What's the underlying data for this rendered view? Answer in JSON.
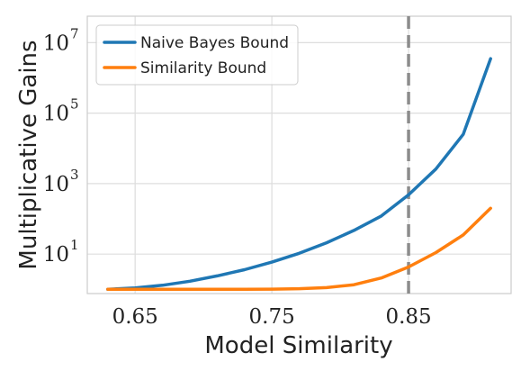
{
  "chart_data": {
    "type": "line",
    "xlabel": "Model Similarity",
    "ylabel": "Multiplicative Gains",
    "yscale": "log",
    "xlim": [
      0.615,
      0.925
    ],
    "ylim_log10": [
      -0.12,
      7.75
    ],
    "x_ticks": [
      {
        "value": 0.65,
        "label": "0.65"
      },
      {
        "value": 0.75,
        "label": "0.75"
      },
      {
        "value": 0.85,
        "label": "0.85"
      }
    ],
    "y_ticks": [
      {
        "log10": 1,
        "base": "10",
        "exp": "1"
      },
      {
        "log10": 3,
        "base": "10",
        "exp": "3"
      },
      {
        "log10": 5,
        "base": "10",
        "exp": "5"
      },
      {
        "log10": 7,
        "base": "10",
        "exp": "7"
      }
    ],
    "grid": true,
    "legend_position": "top-left",
    "reference_line": {
      "x": 0.85,
      "style": "dashed",
      "color": "#8c8c8c"
    },
    "series": [
      {
        "name": "Naive Bayes Bound",
        "color": "#1f77b4",
        "x": [
          0.63,
          0.65,
          0.67,
          0.69,
          0.71,
          0.73,
          0.75,
          0.77,
          0.79,
          0.81,
          0.83,
          0.85,
          0.87,
          0.89,
          0.91
        ],
        "y": [
          1.0,
          1.1,
          1.3,
          1.7,
          2.4,
          3.6,
          5.9,
          10.5,
          21,
          47,
          120,
          480,
          2600,
          25000,
          3500000
        ]
      },
      {
        "name": "Similarity Bound",
        "color": "#ff7f0e",
        "x": [
          0.63,
          0.65,
          0.67,
          0.69,
          0.71,
          0.73,
          0.75,
          0.77,
          0.79,
          0.81,
          0.83,
          0.85,
          0.87,
          0.89,
          0.91
        ],
        "y": [
          1.0,
          1.0,
          1.0,
          1.0,
          1.0,
          1.0,
          1.01,
          1.04,
          1.12,
          1.35,
          2.1,
          4.3,
          11,
          35,
          200
        ]
      }
    ]
  }
}
